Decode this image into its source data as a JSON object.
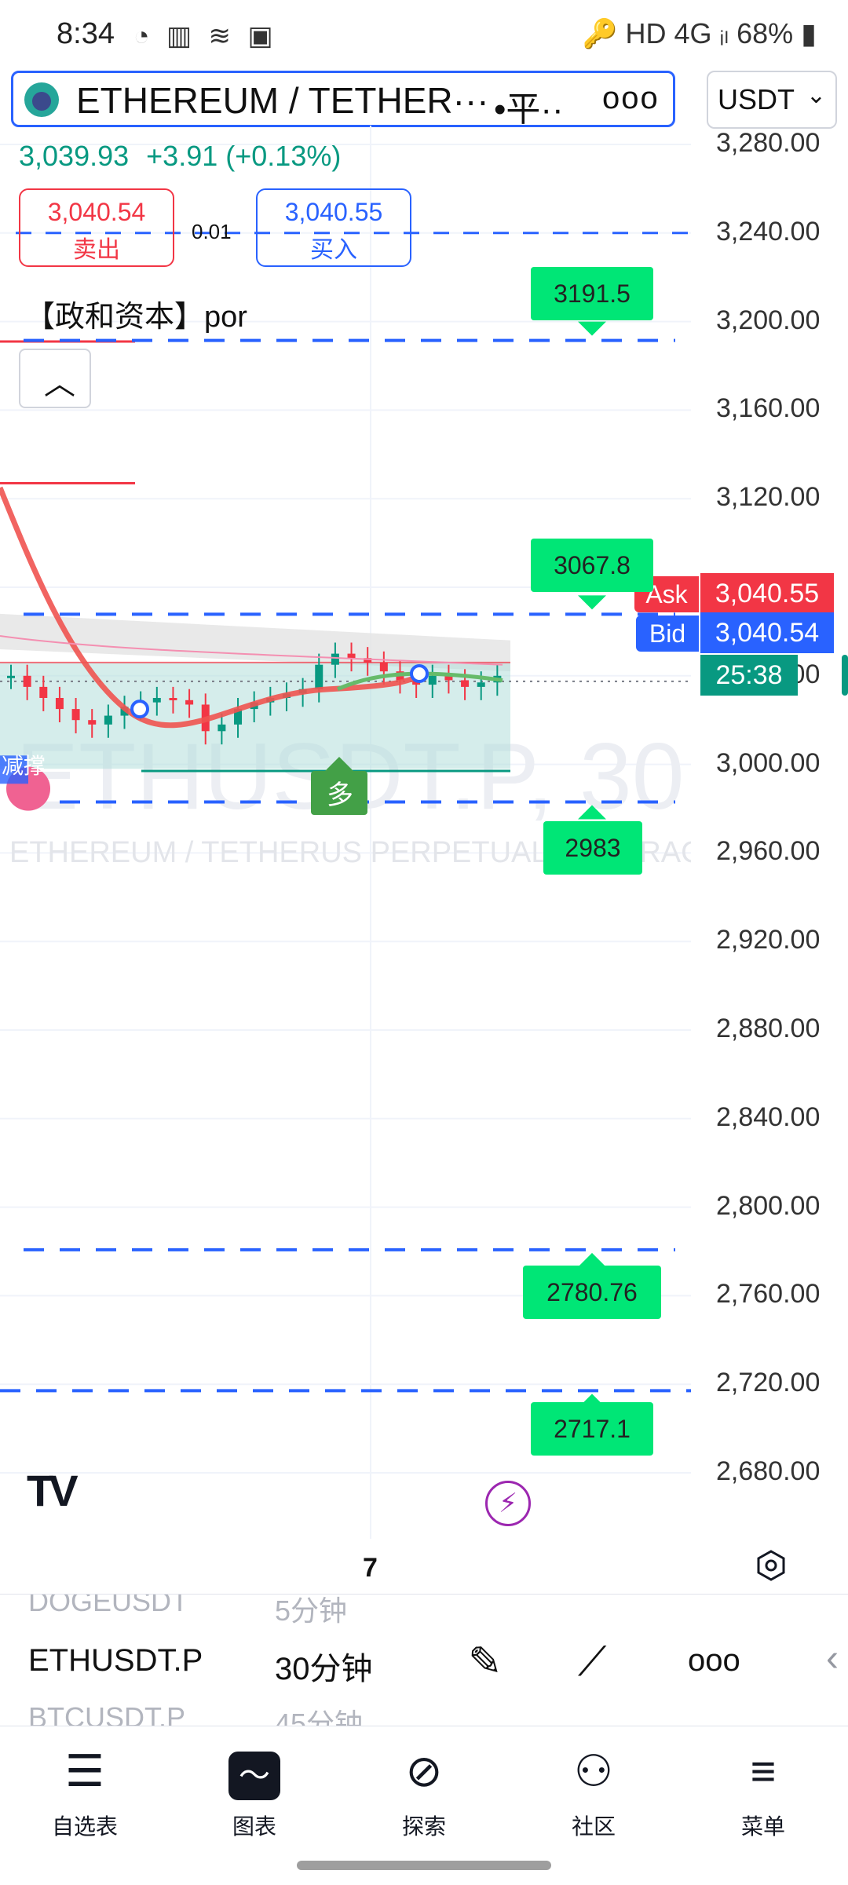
{
  "status_bar": {
    "time": "8:34",
    "left_icons": "◔ ▥ ≋ ▣",
    "right_text": "🔑 HD 4G ᵢₗ 68% ▮"
  },
  "symbol": {
    "title": "ETHEREUM / TETHER···",
    "type": "•平··",
    "more": "ooo",
    "currency": "USDT",
    "currency_chevron": "⌄"
  },
  "quote": {
    "last": "3,039.93",
    "change": "+3.91",
    "change_pct": "(+0.13%)",
    "sell_price": "3,040.54",
    "sell_label": "卖出",
    "buy_price": "3,040.55",
    "buy_label": "买入",
    "spread": "0.01"
  },
  "indicator_label": "【政和资本】por",
  "collapse_icon": "︿",
  "price_axis": [
    "3,280.00",
    "3,240.00",
    "3,200.00",
    "3,160.00",
    "3,120.00",
    "3,080.00",
    "3,040.00",
    "3,000.00",
    "2,960.00",
    "2,920.00",
    "2,880.00",
    "2,840.00",
    "2,800.00",
    "2,760.00",
    "2,720.00",
    "2,680.00"
  ],
  "ask": {
    "tag": "Ask",
    "value": "3,040.55"
  },
  "bid": {
    "tag": "Bid",
    "value": "3,040.54"
  },
  "countdown": "25:38",
  "levels": [
    "3191.5",
    "3067.8",
    "2983",
    "2780.76",
    "2717.1"
  ],
  "watermark": {
    "symbol": "ETHUSDT.P, 30",
    "description": "ETHEREUM / TETHERUS PERPETUAL CONTRACT"
  },
  "signal_label": "多",
  "support_label": "减撑",
  "x_axis_tick": "7",
  "chart_data": {
    "type": "candlestick",
    "symbol": "ETHUSDT.P",
    "interval": "30",
    "y_range": [
      2680,
      3280
    ],
    "last_price": 3039.93,
    "ask": 3040.55,
    "bid": 3040.54,
    "horizontal_levels": [
      3191.5,
      3067.8,
      2983,
      2780.76,
      2717.1
    ],
    "box_range": [
      2998,
      3046
    ],
    "candles_close_approx": [
      3040,
      3035,
      3030,
      3025,
      3020,
      3018,
      3022,
      3026,
      3028,
      3030,
      3029,
      3027,
      3015,
      3018,
      3025,
      3028,
      3030,
      3032,
      3034,
      3045,
      3050,
      3048,
      3046,
      3042,
      3038,
      3036,
      3040,
      3038,
      3035,
      3037,
      3040
    ]
  },
  "picker": {
    "symbols": [
      "DOGEUSDT",
      "ETHUSDT.P",
      "BTCUSDT.P"
    ],
    "intervals": [
      "5分钟",
      "30分钟",
      "45分钟"
    ],
    "tools": [
      "✎",
      "⟋",
      "ooo",
      "‹"
    ]
  },
  "nav": [
    {
      "label": "自选表",
      "icon": "☰"
    },
    {
      "label": "图表",
      "icon": "〜"
    },
    {
      "label": "探索",
      "icon": "⊘"
    },
    {
      "label": "社区",
      "icon": "⚇"
    },
    {
      "label": "菜单",
      "icon": "≡"
    }
  ],
  "colors": {
    "up": "#089981",
    "down": "#f23645",
    "accent": "#2962ff",
    "level": "#00e676"
  }
}
